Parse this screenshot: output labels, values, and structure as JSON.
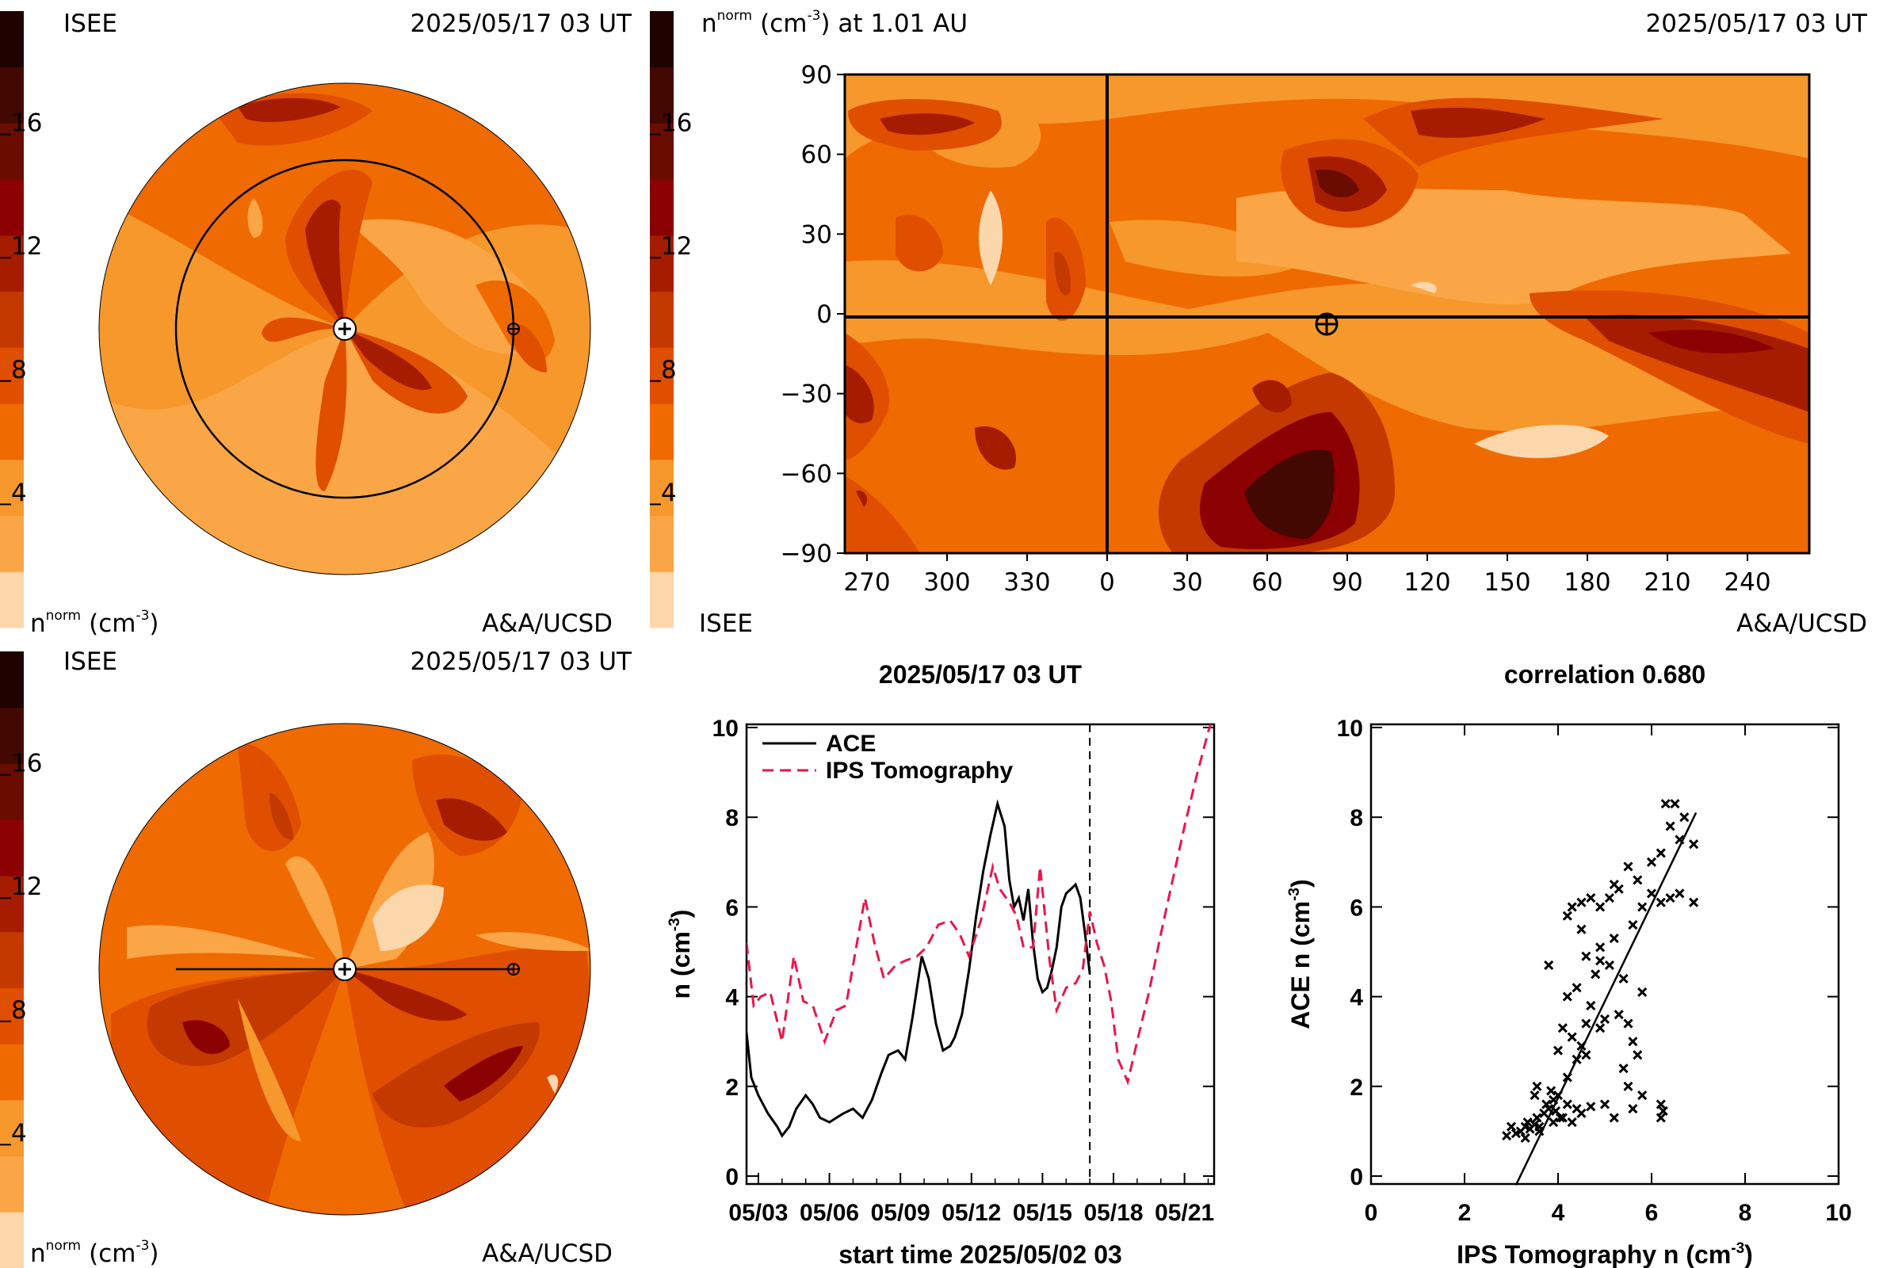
{
  "colors": {
    "scale": [
      "#fdd7ac",
      "#fba646",
      "#f6982c",
      "#ef6a00",
      "#e04e00",
      "#c33900",
      "#a51c00",
      "#8b0000",
      "#6a0c00",
      "#430800",
      "#200200"
    ],
    "ace": "#000000",
    "ips": "#e8174b"
  },
  "top_left": {
    "org": "ISEE",
    "datetime": "2025/05/17 03 UT",
    "unit_base": "n",
    "unit_sup": "norm",
    "unit_tail": "(cm",
    "unit_exp": "-3",
    "unit_close": ")",
    "credit": "A&A/UCSD"
  },
  "bottom_left": {
    "org": "ISEE",
    "datetime": "2025/05/17 03 UT",
    "unit_base": "n",
    "unit_sup": "norm",
    "unit_tail": "(cm",
    "unit_exp": "-3",
    "unit_close": ")",
    "credit": "A&A/UCSD"
  },
  "colorbar": {
    "ticks": [
      "16",
      "12",
      "8",
      "4"
    ]
  },
  "top_right": {
    "title_base": "n",
    "title_sup": "norm",
    "title_tail": "(cm",
    "title_exp": "-3",
    "title_end": ") at 1.01 AU",
    "datetime": "2025/05/17 03 UT",
    "org": "ISEE",
    "credit": "A&A/UCSD",
    "x_ticks": [
      "270",
      "300",
      "330",
      "0",
      "30",
      "60",
      "90",
      "120",
      "150",
      "180",
      "210",
      "240"
    ],
    "y_ticks": [
      "90",
      "60",
      "30",
      "0",
      "−30",
      "−60",
      "−90"
    ]
  },
  "chart_data": [
    {
      "type": "line",
      "title": "2025/05/17 03 UT",
      "xlabel": "start time 2025/05/02 03",
      "ylabel": "n (cm-3)",
      "ylim": [
        0,
        10
      ],
      "x_ticks": [
        "05/03",
        "05/06",
        "05/09",
        "05/12",
        "05/15",
        "05/18",
        "05/21"
      ],
      "y_ticks": [
        "0",
        "2",
        "4",
        "6",
        "8",
        "10"
      ],
      "xlim_days": [
        0.5,
        20.25
      ],
      "marker_day": 15.0,
      "legend_position": "top-left",
      "series": [
        {
          "name": "ACE",
          "style": "solid",
          "x_days": [
            0.5,
            0.7,
            1.0,
            1.4,
            1.8,
            2.0,
            2.3,
            2.6,
            3.0,
            3.3,
            3.6,
            4.0,
            4.3,
            4.6,
            5.0,
            5.4,
            5.8,
            6.2,
            6.5,
            6.9,
            7.2,
            7.5,
            7.9,
            8.2,
            8.5,
            8.8,
            9.1,
            9.3,
            9.6,
            9.9,
            10.2,
            10.5,
            10.8,
            11.1,
            11.4,
            11.6,
            11.8,
            12.0,
            12.2,
            12.4,
            12.6,
            12.8,
            13.0,
            13.2,
            13.4,
            13.6,
            13.8,
            14.0,
            14.2,
            14.4,
            14.6,
            14.8,
            15.0
          ],
          "values": [
            3.2,
            2.2,
            1.8,
            1.4,
            1.1,
            0.9,
            1.1,
            1.5,
            1.8,
            1.6,
            1.3,
            1.2,
            1.3,
            1.4,
            1.5,
            1.3,
            1.7,
            2.3,
            2.7,
            2.8,
            2.6,
            3.5,
            4.9,
            4.4,
            3.4,
            2.8,
            2.9,
            3.1,
            3.6,
            4.6,
            5.8,
            6.8,
            7.6,
            8.3,
            7.8,
            6.6,
            6.0,
            6.2,
            5.7,
            6.4,
            5.2,
            4.4,
            4.1,
            4.2,
            4.6,
            5.1,
            6.0,
            6.3,
            6.4,
            6.5,
            6.2,
            5.4,
            4.5
          ]
        },
        {
          "name": "IPS Tomography",
          "style": "dashed",
          "x_days": [
            0.5,
            0.8,
            1.1,
            1.5,
            2.0,
            2.5,
            2.9,
            3.3,
            3.8,
            4.3,
            4.7,
            5.1,
            5.5,
            5.9,
            6.3,
            6.8,
            7.2,
            7.7,
            8.1,
            8.6,
            9.1,
            9.5,
            9.9,
            10.4,
            10.9,
            11.2,
            11.6,
            11.9,
            12.2,
            12.6,
            12.9,
            13.3,
            13.6,
            14.0,
            14.4,
            14.7,
            15.0,
            15.3,
            15.6,
            15.9,
            16.2,
            16.6,
            17.0,
            17.5,
            18.0,
            18.5,
            19.0,
            19.5,
            20.0,
            20.25
          ],
          "values": [
            5.2,
            3.8,
            4.0,
            4.1,
            3.0,
            4.9,
            3.9,
            3.8,
            3.0,
            3.7,
            3.8,
            5.0,
            6.2,
            5.2,
            4.4,
            4.7,
            4.8,
            4.9,
            5.1,
            5.6,
            5.7,
            5.4,
            4.9,
            5.7,
            6.9,
            6.4,
            6.1,
            5.8,
            5.1,
            5.1,
            6.9,
            4.8,
            3.7,
            4.2,
            4.3,
            4.6,
            5.9,
            5.2,
            4.7,
            3.9,
            2.6,
            2.1,
            3.0,
            4.1,
            5.4,
            6.6,
            7.8,
            8.9,
            9.9,
            10.3
          ]
        }
      ]
    },
    {
      "type": "scatter",
      "title": "correlation 0.680",
      "xlabel": "IPS Tomography n (cm-3)",
      "ylabel": "ACE n (cm-3)",
      "xlim": [
        0,
        10
      ],
      "ylim": [
        0,
        10
      ],
      "x_ticks": [
        "0",
        "2",
        "4",
        "6",
        "8",
        "10"
      ],
      "y_ticks": [
        "0",
        "2",
        "4",
        "6",
        "8",
        "10"
      ],
      "marker": "x",
      "points": [
        [
          2.9,
          0.9
        ],
        [
          3.0,
          1.1
        ],
        [
          3.1,
          0.95
        ],
        [
          3.2,
          1.0
        ],
        [
          3.3,
          1.1
        ],
        [
          3.35,
          1.2
        ],
        [
          3.4,
          1.05
        ],
        [
          3.5,
          1.15
        ],
        [
          3.55,
          1.3
        ],
        [
          3.6,
          1.1
        ],
        [
          3.7,
          1.4
        ],
        [
          3.75,
          1.6
        ],
        [
          3.8,
          1.5
        ],
        [
          3.9,
          1.7
        ],
        [
          3.95,
          1.45
        ],
        [
          4.0,
          1.8
        ],
        [
          4.1,
          1.3
        ],
        [
          4.2,
          1.6
        ],
        [
          4.3,
          1.2
        ],
        [
          4.4,
          1.5
        ],
        [
          3.55,
          2.0
        ],
        [
          3.5,
          1.8
        ],
        [
          3.8,
          4.7
        ],
        [
          3.85,
          1.9
        ],
        [
          4.05,
          1.3
        ],
        [
          4.5,
          1.4
        ],
        [
          4.7,
          1.55
        ],
        [
          5.0,
          1.6
        ],
        [
          5.2,
          1.3
        ],
        [
          5.6,
          1.5
        ],
        [
          6.2,
          1.3
        ],
        [
          6.25,
          1.45
        ],
        [
          6.2,
          1.6
        ],
        [
          5.8,
          1.8
        ],
        [
          5.5,
          2.0
        ],
        [
          5.4,
          2.4
        ],
        [
          5.7,
          2.7
        ],
        [
          4.5,
          2.9
        ],
        [
          4.3,
          3.1
        ],
        [
          4.6,
          2.7
        ],
        [
          4.9,
          3.3
        ],
        [
          5.0,
          3.5
        ],
        [
          5.3,
          3.6
        ],
        [
          5.5,
          3.4
        ],
        [
          4.1,
          3.3
        ],
        [
          4.7,
          3.8
        ],
        [
          4.2,
          4.0
        ],
        [
          4.4,
          4.2
        ],
        [
          4.8,
          4.5
        ],
        [
          5.1,
          4.7
        ],
        [
          4.6,
          4.9
        ],
        [
          4.9,
          5.1
        ],
        [
          5.2,
          5.3
        ],
        [
          4.5,
          5.5
        ],
        [
          4.2,
          5.8
        ],
        [
          4.3,
          6.0
        ],
        [
          4.5,
          6.1
        ],
        [
          4.7,
          6.2
        ],
        [
          4.9,
          6.0
        ],
        [
          5.1,
          6.2
        ],
        [
          5.3,
          6.4
        ],
        [
          5.6,
          5.6
        ],
        [
          5.8,
          6.0
        ],
        [
          6.0,
          6.3
        ],
        [
          6.2,
          6.1
        ],
        [
          6.4,
          6.2
        ],
        [
          6.6,
          6.3
        ],
        [
          6.9,
          6.1
        ],
        [
          5.2,
          6.5
        ],
        [
          5.7,
          6.6
        ],
        [
          6.0,
          7.0
        ],
        [
          6.2,
          7.2
        ],
        [
          6.6,
          7.5
        ],
        [
          6.9,
          7.4
        ],
        [
          6.4,
          7.8
        ],
        [
          6.7,
          8.0
        ],
        [
          6.3,
          8.3
        ],
        [
          6.5,
          8.3
        ],
        [
          5.5,
          6.9
        ],
        [
          4.9,
          4.8
        ],
        [
          5.4,
          4.4
        ],
        [
          5.8,
          4.1
        ],
        [
          4.4,
          2.6
        ],
        [
          3.9,
          1.2
        ],
        [
          3.6,
          1.0
        ],
        [
          3.3,
          0.85
        ],
        [
          4.2,
          2.2
        ],
        [
          4.0,
          2.8
        ],
        [
          4.6,
          3.4
        ],
        [
          5.6,
          3.0
        ]
      ],
      "fit_line": {
        "x1": 3.1,
        "y1": -0.2,
        "x2": 6.95,
        "y2": 8.1
      }
    }
  ]
}
